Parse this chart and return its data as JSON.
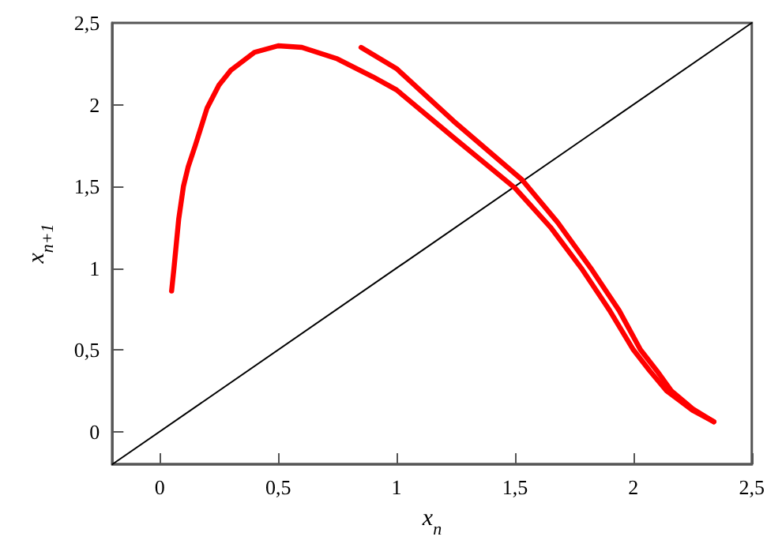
{
  "chart_data": {
    "type": "line",
    "xlabel": "x$_{n}$",
    "ylabel": "x$_{n+1}$",
    "xlim": [
      -0.2,
      2.5
    ],
    "ylim": [
      -0.2,
      2.5
    ],
    "xticks": [
      0,
      {
        "value": 0.5,
        "label": "0,5"
      },
      1,
      {
        "value": 1.5,
        "label": "1,5"
      },
      2,
      {
        "value": 2.5,
        "label": "2,5"
      }
    ],
    "yticks": [
      0,
      {
        "value": 0.5,
        "label": "0,5"
      },
      1,
      {
        "value": 1.5,
        "label": "1,5"
      },
      2,
      {
        "value": 2.5,
        "label": "2,5"
      }
    ],
    "marker": "none",
    "line_style": "solid",
    "series": [
      {
        "color": "#ff0000",
        "x": [
          0.05,
          0.06,
          0.07,
          0.08,
          0.1,
          0.12,
          0.15,
          0.2,
          0.25,
          0.3,
          0.4,
          0.5,
          0.6,
          0.75,
          0.9,
          1.0,
          1.24,
          1.5,
          1.65,
          1.78,
          1.9,
          2.0,
          2.07,
          2.14,
          2.25,
          2.34
        ],
        "values": [
          0.86,
          1.0,
          1.15,
          1.3,
          1.5,
          1.62,
          1.75,
          1.98,
          2.12,
          2.21,
          2.32,
          2.36,
          2.35,
          2.28,
          2.17,
          2.09,
          1.8,
          1.49,
          1.25,
          1.0,
          0.74,
          0.5,
          0.37,
          0.25,
          0.13,
          0.06
        ]
      },
      {
        "color": "#ff0000",
        "x": [
          0.85,
          1.0,
          1.24,
          1.53,
          1.68,
          1.82,
          1.94,
          2.03,
          2.1,
          2.16,
          2.25,
          2.34
        ],
        "values": [
          2.35,
          2.22,
          1.9,
          1.54,
          1.28,
          1.0,
          0.74,
          0.5,
          0.37,
          0.25,
          0.14,
          0.06
        ]
      },
      {
        "color": "#000000",
        "x": [
          -0.2,
          2.5
        ],
        "values": [
          -0.2,
          2.5
        ]
      }
    ]
  }
}
